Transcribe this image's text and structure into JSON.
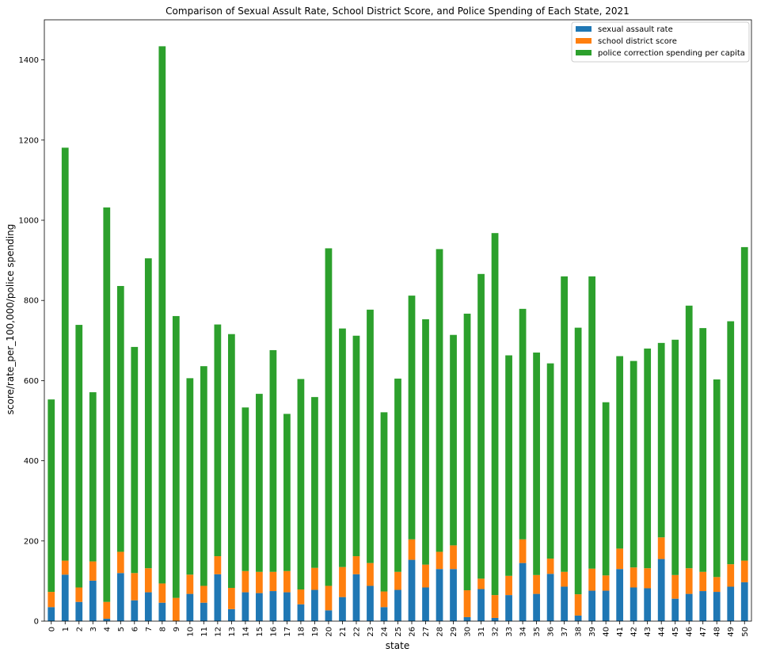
{
  "chart_data": {
    "type": "bar",
    "stacked": true,
    "title": "Comparison of Sexual Assult Rate, School District Score, and Police Spending of Each State, 2021",
    "xlabel": "state",
    "ylabel": "score/rate_per_100,000/police spending",
    "ylim": [
      0,
      1500
    ],
    "yticks": [
      0,
      200,
      400,
      600,
      800,
      1000,
      1200,
      1400
    ],
    "legend_position": "top-right",
    "categories": [
      "0",
      "1",
      "2",
      "3",
      "4",
      "5",
      "6",
      "7",
      "8",
      "9",
      "10",
      "11",
      "12",
      "13",
      "14",
      "15",
      "16",
      "17",
      "18",
      "19",
      "20",
      "21",
      "22",
      "23",
      "24",
      "25",
      "26",
      "27",
      "28",
      "29",
      "30",
      "31",
      "32",
      "33",
      "34",
      "35",
      "36",
      "37",
      "38",
      "39",
      "40",
      "41",
      "42",
      "43",
      "44",
      "45",
      "46",
      "47",
      "48",
      "49",
      "50"
    ],
    "series": [
      {
        "name": "sexual assault rate",
        "color": "#1f77b4",
        "values": [
          35,
          116,
          48,
          101,
          6,
          120,
          52,
          72,
          46,
          1,
          68,
          46,
          117,
          30,
          72,
          70,
          75,
          72,
          42,
          78,
          27,
          60,
          117,
          88,
          35,
          78,
          153,
          84,
          130,
          130,
          10,
          80,
          8,
          65,
          145,
          68,
          118,
          86,
          14,
          76,
          76,
          130,
          84,
          82,
          155,
          56,
          68,
          75,
          73,
          86,
          97
        ]
      },
      {
        "name": "school district score",
        "color": "#ff7f0e",
        "values": [
          38,
          35,
          36,
          48,
          42,
          53,
          68,
          60,
          48,
          57,
          48,
          42,
          45,
          53,
          53,
          53,
          48,
          53,
          37,
          55,
          61,
          75,
          45,
          57,
          39,
          45,
          51,
          57,
          43,
          59,
          67,
          26,
          57,
          48,
          59,
          47,
          38,
          37,
          53,
          55,
          38,
          51,
          50,
          50,
          54,
          59,
          64,
          48,
          37,
          56,
          54
        ]
      },
      {
        "name": "police correction spending per capita",
        "color": "#2ca02c",
        "values": [
          480,
          1030,
          655,
          422,
          984,
          663,
          564,
          773,
          1340,
          703,
          490,
          548,
          578,
          633,
          408,
          444,
          553,
          392,
          525,
          426,
          842,
          595,
          550,
          632,
          447,
          482,
          608,
          612,
          755,
          525,
          690,
          760,
          903,
          550,
          575,
          555,
          487,
          737,
          665,
          729,
          432,
          480,
          515,
          548,
          485,
          587,
          655,
          608,
          493,
          606,
          782
        ]
      }
    ]
  }
}
